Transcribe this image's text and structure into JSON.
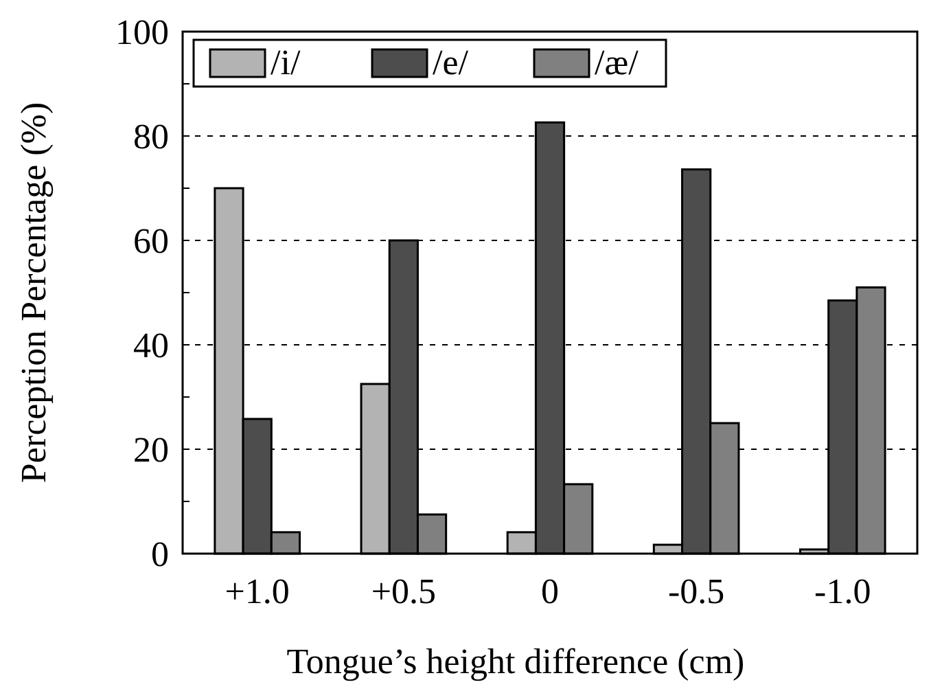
{
  "chart_data": {
    "type": "bar",
    "xlabel": "Tongue’s height difference (cm)",
    "ylabel": "Perception Percentage (%)",
    "categories": [
      "+1.0",
      "+0.5",
      "0",
      "-0.5",
      "-1.0"
    ],
    "series": [
      {
        "name": "/i/",
        "color": "#b3b3b3",
        "values": [
          70.0,
          32.5,
          4.1,
          1.7,
          0.8
        ]
      },
      {
        "name": "/e/",
        "color": "#4d4d4d",
        "values": [
          25.8,
          60.0,
          82.6,
          73.6,
          48.5
        ]
      },
      {
        "name": "/æ/",
        "color": "#808080",
        "values": [
          4.1,
          7.5,
          13.3,
          25.0,
          51.0
        ]
      }
    ],
    "ylim": [
      0,
      100
    ],
    "yticks": [
      0,
      20,
      40,
      60,
      80,
      100
    ],
    "grid": "y",
    "legend": "top left"
  }
}
